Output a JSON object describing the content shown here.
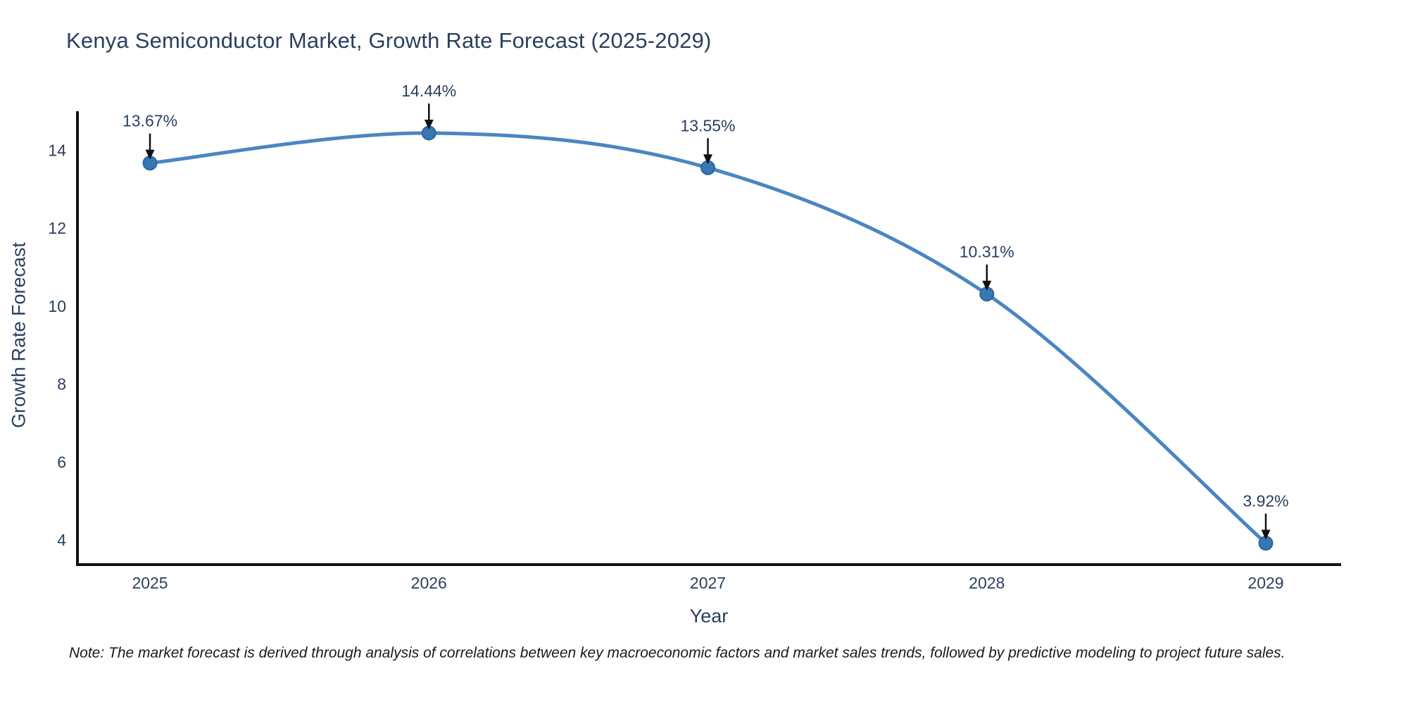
{
  "title": "Kenya Semiconductor Market, Growth Rate Forecast (2025-2029)",
  "note": "Note: The market forecast is derived through analysis of correlations between key macroeconomic factors and market sales trends, followed by predictive modeling to project future sales.",
  "chart_data": {
    "type": "line",
    "title": "Kenya Semiconductor Market, Growth Rate Forecast (2025-2029)",
    "xlabel": "Year",
    "ylabel": "Growth Rate Forecast",
    "x": [
      2025,
      2026,
      2027,
      2028,
      2029
    ],
    "series": [
      {
        "name": "Growth Rate Forecast",
        "values": [
          13.67,
          14.44,
          13.55,
          10.31,
          3.92
        ]
      }
    ],
    "point_labels": [
      "13.67%",
      "14.44%",
      "13.55%",
      "10.31%",
      "3.92%"
    ],
    "xticklabels": [
      "2025",
      "2026",
      "2027",
      "2028",
      "2029"
    ],
    "yticks": [
      4,
      6,
      8,
      10,
      12,
      14
    ],
    "xlim": [
      2024.74,
      2029.27
    ],
    "ylim": [
      3.37,
      15.0
    ],
    "grid": false,
    "legend": false,
    "line_shape": "spline",
    "annotation_arrows": "down",
    "colors": {
      "line": "#4a86c1",
      "marker": "#3777b4",
      "marker_edge": "#2d659c",
      "axis": "#111111",
      "text": "#2a3f5f",
      "arrow": "#111111",
      "note_text": "#1a1a1a",
      "background": "#ffffff"
    }
  }
}
